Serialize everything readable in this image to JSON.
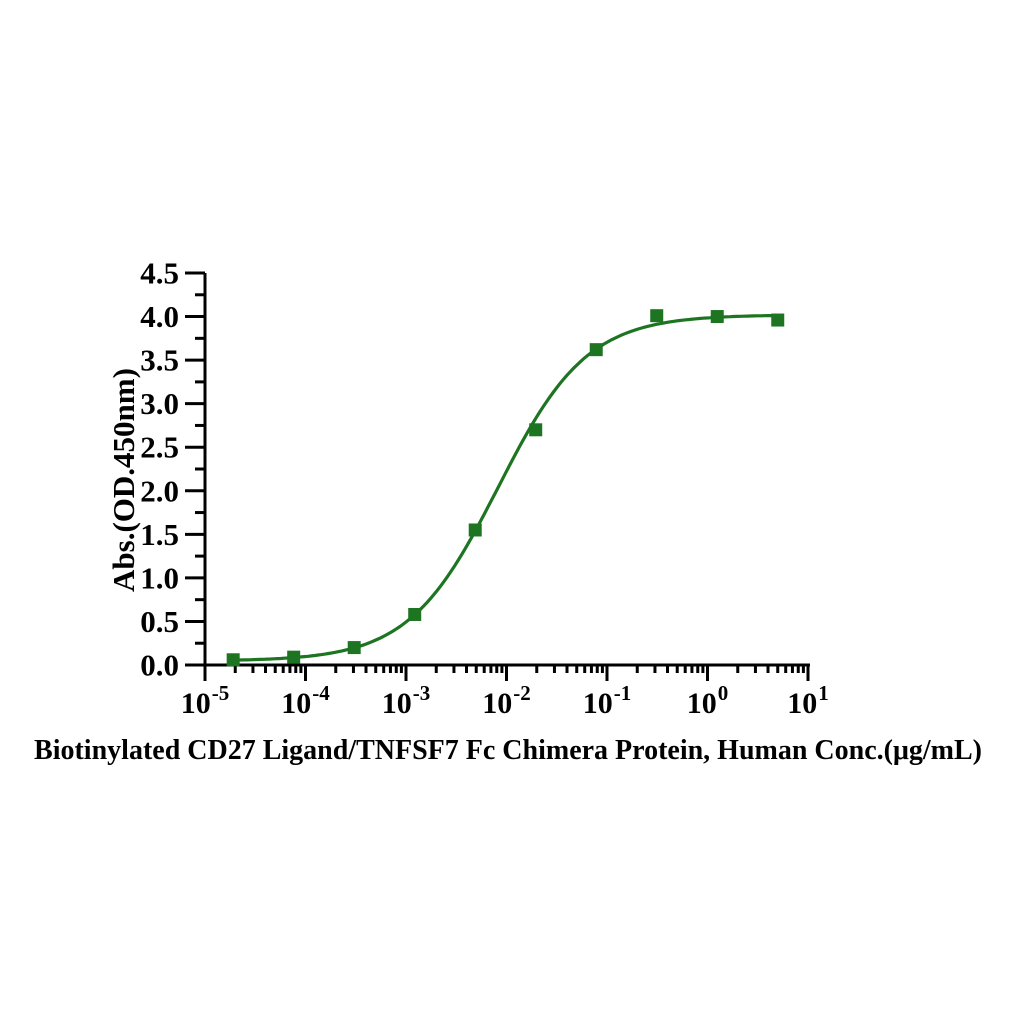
{
  "figure": {
    "background": "#ffffff",
    "text_color": "#000000",
    "axis_color": "#000000"
  },
  "chart_data": {
    "type": "scatter",
    "title": "",
    "xlabel": "Biotinylated CD27 Ligand/TNFSF7 Fc Chimera Protein, Human Conc.(μg/mL)",
    "ylabel": "Abs.(OD.450nm)",
    "x_scale": "log10",
    "xlim": [
      1e-05,
      10
    ],
    "ylim": [
      0,
      4.5
    ],
    "grid": false,
    "legend": "none",
    "x_ticks": [
      {
        "label": "10^-5",
        "exponent": -5
      },
      {
        "label": "10^-4",
        "exponent": -4
      },
      {
        "label": "10^-3",
        "exponent": -3
      },
      {
        "label": "10^-2",
        "exponent": -2
      },
      {
        "label": "10^-1",
        "exponent": -1
      },
      {
        "label": "10^0",
        "exponent": 0
      },
      {
        "label": "10^1",
        "exponent": 1
      }
    ],
    "y_ticks": [
      {
        "label": "0.0",
        "value": 0.0
      },
      {
        "label": "0.5",
        "value": 0.5
      },
      {
        "label": "1.0",
        "value": 1.0
      },
      {
        "label": "1.5",
        "value": 1.5
      },
      {
        "label": "2.0",
        "value": 2.0
      },
      {
        "label": "2.5",
        "value": 2.5
      },
      {
        "label": "3.0",
        "value": 3.0
      },
      {
        "label": "3.5",
        "value": 3.5
      },
      {
        "label": "4.0",
        "value": 4.0
      },
      {
        "label": "4.5",
        "value": 4.5
      }
    ],
    "series": [
      {
        "name": "Biotinylated CD27 Ligand/TNFSF7 Fc Chimera Protein, Human",
        "marker": "square",
        "color": "#1d7522",
        "x": [
          1.907e-05,
          7.629e-05,
          0.0003052,
          0.001221,
          0.004883,
          0.01953,
          0.07813,
          0.3125,
          1.25,
          5
        ],
        "y": [
          0.06,
          0.09,
          0.2,
          0.58,
          1.55,
          2.7,
          3.62,
          4.01,
          4.0,
          3.96
        ]
      }
    ],
    "fit_curve": {
      "model": "4PL",
      "bottom": 0.045,
      "top": 4.02,
      "ec50": 0.0082,
      "hill": 0.98,
      "x_start": 1.907e-05,
      "x_end": 5,
      "color": "#1d7522"
    }
  }
}
